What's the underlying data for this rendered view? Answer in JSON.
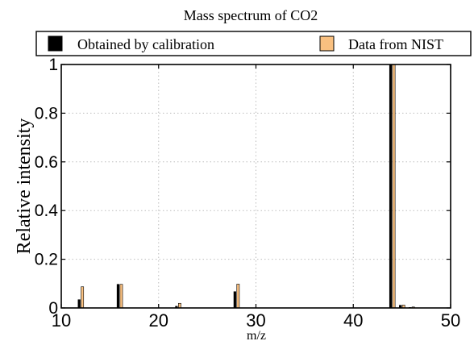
{
  "chart_data": {
    "type": "bar",
    "title": "Mass spectrum of CO2",
    "xlabel": "m/z",
    "ylabel": "Relative intensity",
    "xlim": [
      10,
      50
    ],
    "ylim": [
      0,
      1
    ],
    "xticks": [
      10,
      20,
      30,
      40,
      50
    ],
    "yticks": [
      0,
      0.2,
      0.4,
      0.6,
      0.8,
      1
    ],
    "x_tick_labels": [
      "10",
      "20",
      "30",
      "40",
      "50"
    ],
    "y_tick_labels": [
      "0",
      "0.2",
      "0.4",
      "0.6",
      "0.8",
      "1"
    ],
    "grid": true,
    "legend_position": "top",
    "series": [
      {
        "name": "Obtained by calibration",
        "color": "#000000",
        "x": [
          12,
          16,
          22,
          28,
          44,
          45,
          46
        ],
        "values": [
          0.035,
          0.098,
          0.008,
          0.068,
          1.0,
          0.012,
          0.003
        ]
      },
      {
        "name": "Data from NIST",
        "color": "#f9c080",
        "x": [
          12,
          16,
          22,
          28,
          44,
          45,
          46
        ],
        "values": [
          0.087,
          0.097,
          0.019,
          0.098,
          1.0,
          0.012,
          0.004
        ]
      }
    ]
  }
}
